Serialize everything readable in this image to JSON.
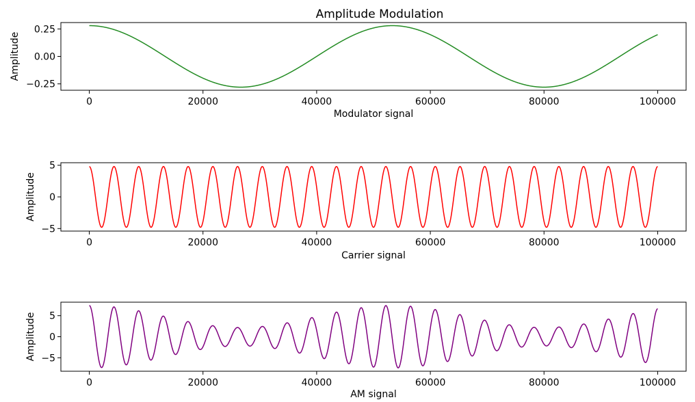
{
  "chart_data": [
    {
      "type": "line",
      "title": "Amplitude Modulation",
      "xlabel": "Modulator signal",
      "ylabel": "Amplitude",
      "xlim": [
        -5000,
        105000
      ],
      "ylim": [
        -0.308,
        0.308
      ],
      "xticks": [
        0,
        20000,
        40000,
        60000,
        80000,
        100000
      ],
      "xtick_labels": [
        "0",
        "20000",
        "40000",
        "60000",
        "80000",
        "100000"
      ],
      "yticks": [
        -0.25,
        0,
        0.25
      ],
      "ytick_labels": [
        "−0.25",
        "0.00",
        "0.25"
      ],
      "grid": false,
      "color": "#228b22",
      "signal": {
        "kind": "modulator",
        "x_range": [
          0,
          100000
        ],
        "amplitude": 0.28,
        "period": 53333
      }
    },
    {
      "type": "line",
      "title": "",
      "xlabel": "Carrier signal",
      "ylabel": "Amplitude",
      "xlim": [
        -5000,
        105000
      ],
      "ylim": [
        -5.4,
        5.4
      ],
      "xticks": [
        0,
        20000,
        40000,
        60000,
        80000,
        100000
      ],
      "xtick_labels": [
        "0",
        "20000",
        "40000",
        "60000",
        "80000",
        "100000"
      ],
      "yticks": [
        -5,
        0,
        5
      ],
      "ytick_labels": [
        "−5",
        "0",
        "5"
      ],
      "grid": false,
      "color": "#ff0000",
      "signal": {
        "kind": "carrier",
        "x_range": [
          0,
          100000
        ],
        "amplitude": 4.8,
        "period": 4348
      }
    },
    {
      "type": "line",
      "title": "",
      "xlabel": "AM signal",
      "ylabel": "Amplitude",
      "xlim": [
        -5000,
        105000
      ],
      "ylim": [
        -8.2,
        8.2
      ],
      "xticks": [
        0,
        20000,
        40000,
        60000,
        80000,
        100000
      ],
      "xtick_labels": [
        "0",
        "20000",
        "40000",
        "60000",
        "80000",
        "100000"
      ],
      "yticks": [
        -5,
        0,
        5
      ],
      "ytick_labels": [
        "−5",
        "0",
        "5"
      ],
      "grid": false,
      "color": "#800080",
      "signal": {
        "kind": "am",
        "x_range": [
          0,
          100000
        ],
        "carrier_amplitude": 4.8,
        "carrier_period": 4348,
        "modulator_amplitude": 0.28,
        "modulator_period": 53333,
        "gain": 9.35
      }
    }
  ]
}
